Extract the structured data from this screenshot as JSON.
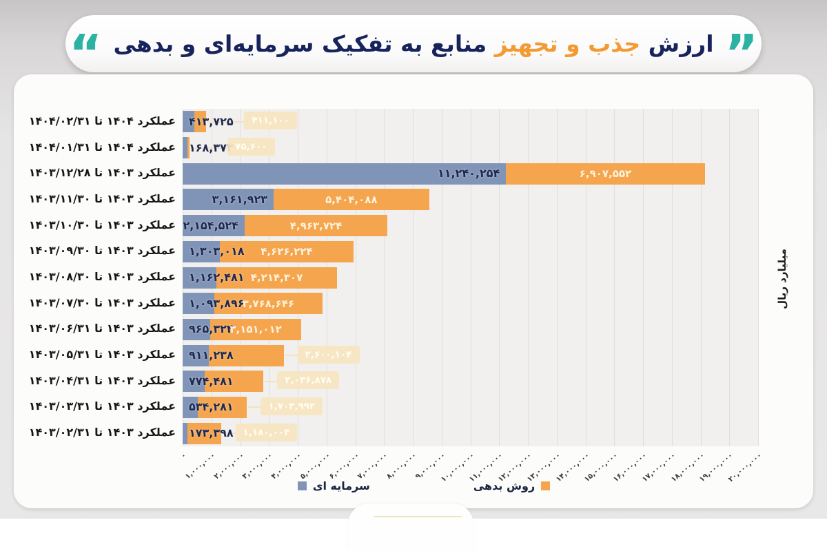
{
  "title": {
    "part1": "ارزش",
    "highlight": "جذب و تجهیز",
    "part2": "منابع به تفکیک سرمایه‌ای و بدهی",
    "quote_open": "”",
    "quote_close": "“",
    "quote_color": "#2bb2a3",
    "navy_color": "#17245c",
    "highlight_color": "#f39a33"
  },
  "axis": {
    "y_title": "میلیارد ریال",
    "x_ticks": [
      "۰",
      "۱,۰۰۰,۰۰۰",
      "۲,۰۰۰,۰۰۰",
      "۳,۰۰۰,۰۰۰",
      "۴,۰۰۰,۰۰۰",
      "۵,۰۰۰,۰۰۰",
      "۶,۰۰۰,۰۰۰",
      "۷,۰۰۰,۰۰۰",
      "۸,۰۰۰,۰۰۰",
      "۹,۰۰۰,۰۰۰",
      "۱۰,۰۰۰,۰۰۰",
      "۱۱,۰۰۰,۰۰۰",
      "۱۲,۰۰۰,۰۰۰",
      "۱۳,۰۰۰,۰۰۰",
      "۱۴,۰۰۰,۰۰۰",
      "۱۵,۰۰۰,۰۰۰",
      "۱۶,۰۰۰,۰۰۰",
      "۱۷,۰۰۰,۰۰۰",
      "۱۸,۰۰۰,۰۰۰",
      "۱۹,۰۰۰,۰۰۰",
      "۲۰,۰۰۰,۰۰۰"
    ]
  },
  "legend": [
    {
      "label": "سرمایه ای",
      "color": "#8094b7"
    },
    {
      "label": "روش بدهی",
      "color": "#f5a54d"
    }
  ],
  "chart_data": {
    "type": "bar",
    "orientation": "horizontal-stacked",
    "title": "ارزش جذب و تجهیز منابع به تفکیک سرمایه‌ای و بدهی",
    "ylabel_unit": "میلیارد ریال",
    "xlim": [
      0,
      20000000
    ],
    "x_tick_step": 1000000,
    "grid": true,
    "legend_position": "bottom",
    "categories": [
      "عملکرد ۱۴۰۴ تا ۱۴۰۴/۰۲/۳۱",
      "عملکرد ۱۴۰۴ تا ۱۴۰۴/۰۱/۳۱",
      "عملکرد ۱۴۰۳ تا ۱۴۰۳/۱۲/۲۸",
      "عملکرد ۱۴۰۳ تا ۱۴۰۳/۱۱/۳۰",
      "عملکرد ۱۴۰۳ تا ۱۴۰۳/۱۰/۳۰",
      "عملکرد ۱۴۰۳ تا ۱۴۰۳/۰۹/۳۰",
      "عملکرد ۱۴۰۳ تا ۱۴۰۳/۰۸/۳۰",
      "عملکرد ۱۴۰۳ تا ۱۴۰۳/۰۷/۳۰",
      "عملکرد ۱۴۰۳ تا ۱۴۰۳/۰۶/۳۱",
      "عملکرد ۱۴۰۳ تا ۱۴۰۳/۰۵/۳۱",
      "عملکرد ۱۴۰۳ تا ۱۴۰۳/۰۴/۳۱",
      "عملکرد ۱۴۰۳ تا ۱۴۰۳/۰۳/۳۱",
      "عملکرد ۱۴۰۳ تا ۱۴۰۳/۰۲/۳۱"
    ],
    "series": [
      {
        "name": "سرمایه ای",
        "color": "#8094b7",
        "values": [
          413725,
          168373,
          11240254,
          3161923,
          2154524,
          1303018,
          1162481,
          1093896,
          965324,
          911238,
          774481,
          534281,
          173398
        ]
      },
      {
        "name": "روش بدهی",
        "color": "#f5a54d",
        "values": [
          411100,
          75600,
          6907552,
          5404088,
          4963724,
          4626224,
          4214307,
          3768646,
          3151012,
          2600104,
          2036878,
          1703992,
          1180003
        ]
      }
    ],
    "value_labels": {
      "capital": [
        "۴۱۳,۷۲۵",
        "۱۶۸,۳۷۳",
        "۱۱,۲۴۰,۲۵۴",
        "۳,۱۶۱,۹۲۳",
        "۲,۱۵۴,۵۲۴",
        "۱,۳۰۳,۰۱۸",
        "۱,۱۶۲,۴۸۱",
        "۱,۰۹۳,۸۹۶",
        "۹۶۵,۳۲۴",
        "۹۱۱,۲۳۸",
        "۷۷۴,۴۸۱",
        "۵۳۴,۲۸۱",
        "۱۷۳,۳۹۸"
      ],
      "debt": [
        "۴۱۱,۱۰۰",
        "۷۵,۶۰۰",
        "۶,۹۰۷,۵۵۲",
        "۵,۴۰۴,۰۸۸",
        "۴,۹۶۳,۷۲۴",
        "۴,۶۲۶,۲۲۴",
        "۴,۲۱۴,۳۰۷",
        "۳,۷۶۸,۶۴۶",
        "۳,۱۵۱,۰۱۲",
        "۲,۶۰۰,۱۰۴",
        "۲,۰۳۶,۸۷۸",
        "۱,۷۰۳,۹۹۲",
        "۱,۱۸۰,۰۰۳"
      ]
    },
    "capital_label_style": [
      "start",
      "start",
      "inside",
      "inside",
      "inside",
      "start",
      "start",
      "start",
      "start",
      "start",
      "start",
      "start",
      "start"
    ],
    "debt_label_style": [
      "callout",
      "callout",
      "inside",
      "inside",
      "inside",
      "inside",
      "inside",
      "inside",
      "inside",
      "callout",
      "callout",
      "callout",
      "callout"
    ]
  }
}
